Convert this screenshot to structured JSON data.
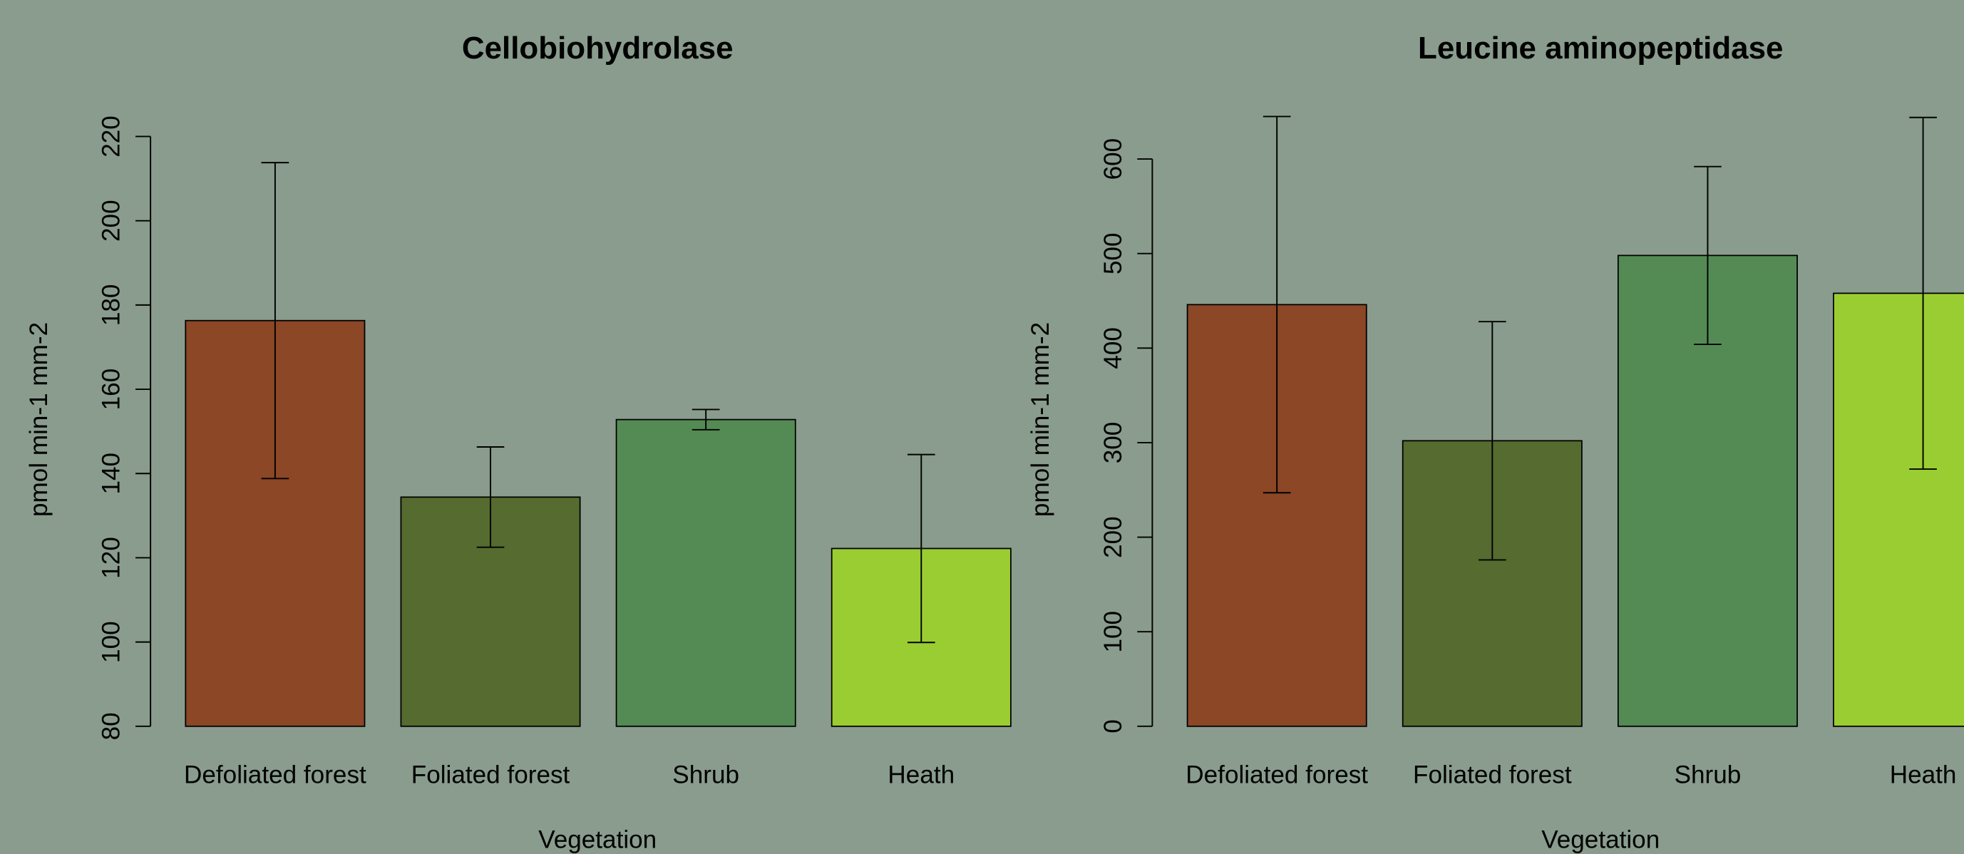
{
  "chart_data": [
    {
      "type": "bar",
      "title": "Cellobiohydrolase",
      "x_label": "Vegetation",
      "y_label": "pmol min-1 mm-2",
      "categories": [
        "Defoliated forest",
        "Foliated forest",
        "Shrub",
        "Heath"
      ],
      "values": [
        176.3,
        134.4,
        152.8,
        122.2
      ],
      "errors": [
        37.5,
        11.9,
        2.4,
        22.3
      ],
      "colors": [
        "#8b4726",
        "#556b2f",
        "#548b54",
        "#9acd32"
      ],
      "ylim": [
        80,
        220
      ],
      "yticks": [
        80,
        100,
        120,
        140,
        160,
        180,
        200,
        220
      ]
    },
    {
      "type": "bar",
      "title": "Leucine aminopeptidase",
      "x_label": "Vegetation",
      "y_label": "pmol min-1 mm-2",
      "categories": [
        "Defoliated forest",
        "Foliated forest",
        "Shrub",
        "Heath"
      ],
      "values": [
        446,
        302,
        498,
        458
      ],
      "errors": [
        199,
        126,
        94,
        186
      ],
      "colors": [
        "#8b4726",
        "#556b2f",
        "#548b54",
        "#9acd32"
      ],
      "ylim": [
        0,
        600
      ],
      "yticks": [
        0,
        100,
        200,
        300,
        400,
        500,
        600
      ]
    }
  ]
}
